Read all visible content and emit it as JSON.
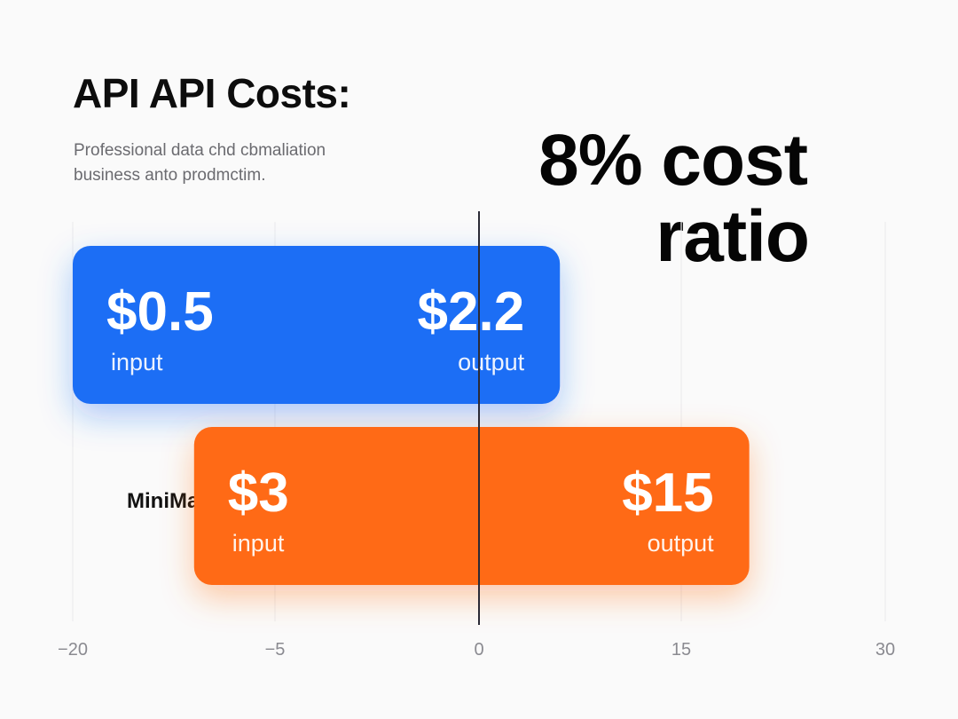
{
  "title": "API API Costs:",
  "subtitle": [
    "Professional data chd cbmaliation",
    "business anto prodmctim."
  ],
  "headline": [
    "8% cost",
    "ratio"
  ],
  "colors": {
    "blue": "#1f6ef5",
    "orange": "#ff6a17",
    "zero_line": "#2a2a36",
    "grid": "#ececee"
  },
  "chart_data": {
    "type": "bar",
    "orientation": "horizontal",
    "grid": true,
    "x_ticks": [
      -20,
      -5,
      0,
      15,
      30
    ],
    "x_tick_labels": [
      "−20",
      "−5",
      "0",
      "15",
      "30"
    ],
    "xlim": [
      -20,
      30
    ],
    "rows": [
      {
        "category": "",
        "color": "blue",
        "start": -20,
        "end": 6,
        "left_value": "$0.5",
        "left_label": "input",
        "right_value": "$2.2",
        "right_label": "output"
      },
      {
        "category": "MiniMax",
        "color": "orange",
        "start": -11,
        "end": 20,
        "left_value": "$3",
        "left_label": "input",
        "right_value": "$15",
        "right_label": "output"
      }
    ]
  }
}
